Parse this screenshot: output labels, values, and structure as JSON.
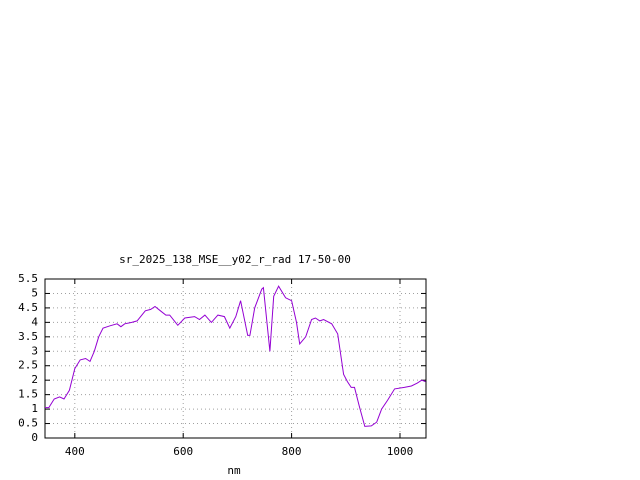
{
  "chart_data": {
    "type": "line",
    "title": "sr_2025_138_MSE__y02_r_rad 17-50-00",
    "xlabel": "nm",
    "series": [
      {
        "name": "sr_2025_138_MSE__y02_r_rad",
        "color": "#9400d3",
        "x": [
          345,
          352,
          362,
          372,
          380,
          390,
          400,
          410,
          420,
          428,
          436,
          444,
          452,
          465,
          478,
          485,
          492,
          505,
          515,
          530,
          540,
          548,
          558,
          568,
          575,
          590,
          603,
          621,
          630,
          640,
          652,
          664,
          676,
          686,
          697,
          706,
          719,
          723,
          732,
          745,
          748,
          760,
          767,
          776,
          789,
          800,
          809,
          815,
          826,
          837,
          844,
          852,
          859,
          874,
          885,
          896,
          903,
          910,
          916,
          925,
          935,
          947,
          957,
          966,
          977,
          990,
          1008,
          1021,
          1032,
          1040,
          1047
        ],
        "values": [
          1.05,
          1.05,
          1.35,
          1.42,
          1.35,
          1.65,
          2.4,
          2.7,
          2.75,
          2.65,
          3.0,
          3.5,
          3.8,
          3.88,
          3.95,
          3.85,
          3.95,
          4.0,
          4.05,
          4.4,
          4.45,
          4.55,
          4.4,
          4.25,
          4.25,
          3.9,
          4.15,
          4.2,
          4.1,
          4.25,
          4.0,
          4.25,
          4.2,
          3.8,
          4.2,
          4.75,
          3.55,
          3.55,
          4.5,
          5.15,
          5.2,
          3.0,
          4.9,
          5.25,
          4.85,
          4.75,
          4.0,
          3.25,
          3.5,
          4.1,
          4.15,
          4.05,
          4.1,
          3.95,
          3.6,
          2.2,
          1.95,
          1.75,
          1.75,
          1.1,
          0.4,
          0.42,
          0.55,
          1.0,
          1.3,
          1.7,
          1.75,
          1.8,
          1.9,
          2.0,
          1.95
        ]
      }
    ],
    "xlim": [
      345,
      1048
    ],
    "xticks": [
      400,
      600,
      800,
      1000
    ],
    "ylim": [
      0,
      5.5
    ],
    "yticks": [
      0,
      0.5,
      1,
      1.5,
      2,
      2.5,
      3,
      3.5,
      4,
      4.5,
      5,
      5.5
    ],
    "grid": true
  }
}
